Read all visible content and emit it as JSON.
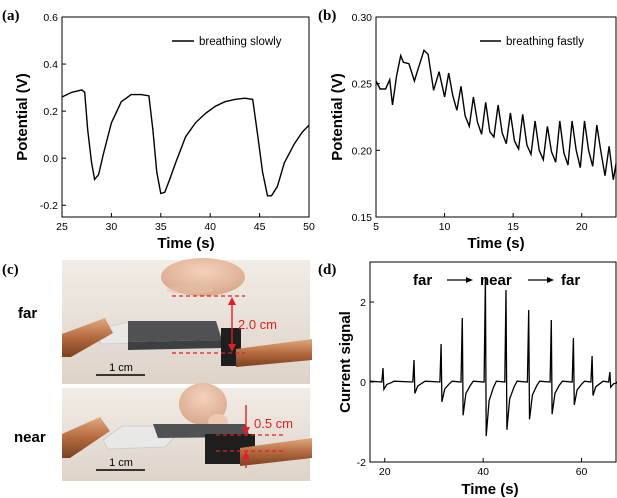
{
  "chart_data": [
    {
      "panel": "(a)",
      "type": "line",
      "xlabel": "Time (s)",
      "ylabel": "Potential (V)",
      "xlim": [
        25,
        50
      ],
      "ylim": [
        -0.25,
        0.6
      ],
      "xticks": [
        25,
        30,
        35,
        40,
        45,
        50
      ],
      "yticks": [
        -0.2,
        0.0,
        0.2,
        0.4,
        0.6
      ],
      "ytick_labels": [
        "-0.2",
        "0.0",
        "0.2",
        "0.4",
        "0.6"
      ],
      "legend_position": "top-right",
      "series": [
        {
          "name": "breathing slowly",
          "color": "#000000",
          "x": [
            25,
            26,
            27,
            27.3,
            27.6,
            28.0,
            28.3,
            28.7,
            29.2,
            30,
            31,
            32,
            33,
            33.8,
            34.2,
            34.6,
            35.0,
            35.4,
            35.9,
            36.5,
            37.5,
            38.5,
            39.5,
            40.5,
            41.5,
            42.5,
            43.5,
            44.3,
            44.8,
            45.3,
            45.8,
            46.2,
            46.8,
            47.5,
            48.5,
            49.3,
            50
          ],
          "y": [
            0.26,
            0.28,
            0.29,
            0.28,
            0.12,
            -0.02,
            -0.09,
            -0.07,
            0.02,
            0.15,
            0.24,
            0.27,
            0.27,
            0.265,
            0.12,
            -0.06,
            -0.15,
            -0.145,
            -0.09,
            -0.02,
            0.09,
            0.15,
            0.19,
            0.22,
            0.24,
            0.25,
            0.255,
            0.25,
            0.1,
            -0.06,
            -0.16,
            -0.16,
            -0.12,
            -0.02,
            0.06,
            0.11,
            0.14
          ]
        }
      ]
    },
    {
      "panel": "(b)",
      "type": "line",
      "xlabel": "Time (s)",
      "ylabel": "Potential (V)",
      "xlim": [
        5,
        22.5
      ],
      "ylim": [
        0.15,
        0.3
      ],
      "xticks": [
        5,
        10,
        15,
        20
      ],
      "yticks": [
        0.15,
        0.2,
        0.25,
        0.3
      ],
      "ytick_labels": [
        "0.15",
        "0.20",
        "0.25",
        "0.30"
      ],
      "legend_position": "top-right",
      "series": [
        {
          "name": "breathing fastly",
          "color": "#000000",
          "x": [
            5.0,
            5.3,
            5.7,
            6.0,
            6.2,
            6.5,
            6.8,
            7.0,
            7.4,
            7.8,
            8.1,
            8.5,
            8.8,
            9.2,
            9.6,
            10.0,
            10.3,
            10.6,
            10.9,
            11.2,
            11.5,
            11.8,
            12.1,
            12.4,
            12.7,
            13.0,
            13.3,
            13.6,
            13.9,
            14.2,
            14.5,
            14.8,
            15.1,
            15.4,
            15.7,
            16.0,
            16.3,
            16.6,
            16.9,
            17.2,
            17.5,
            17.8,
            18.1,
            18.4,
            18.7,
            19.0,
            19.3,
            19.6,
            19.9,
            20.2,
            20.5,
            20.8,
            21.1,
            21.4,
            21.7,
            22.0,
            22.3,
            22.5
          ],
          "y": [
            0.252,
            0.246,
            0.246,
            0.253,
            0.234,
            0.256,
            0.271,
            0.266,
            0.265,
            0.252,
            0.262,
            0.275,
            0.272,
            0.245,
            0.259,
            0.24,
            0.258,
            0.241,
            0.23,
            0.248,
            0.226,
            0.218,
            0.24,
            0.221,
            0.212,
            0.236,
            0.214,
            0.21,
            0.234,
            0.213,
            0.205,
            0.228,
            0.207,
            0.201,
            0.227,
            0.204,
            0.197,
            0.222,
            0.2,
            0.193,
            0.218,
            0.199,
            0.191,
            0.222,
            0.198,
            0.189,
            0.222,
            0.2,
            0.187,
            0.222,
            0.2,
            0.188,
            0.219,
            0.199,
            0.181,
            0.203,
            0.178,
            0.19
          ]
        }
      ]
    },
    {
      "panel": "(d)",
      "type": "line",
      "xlabel": "Time (s)",
      "ylabel": "Current signal",
      "xlim": [
        17,
        67
      ],
      "ylim": [
        -2.0,
        3.0
      ],
      "xticks": [
        20,
        40,
        60
      ],
      "yticks": [
        -2,
        0,
        2
      ],
      "ytick_labels": [
        "-2",
        "0",
        "2"
      ],
      "annotation": {
        "far_left": "far",
        "near": "near",
        "far_right": "far"
      },
      "pulses": [
        {
          "t": 19.7,
          "a": 0.35
        },
        {
          "t": 26.0,
          "a": 0.55
        },
        {
          "t": 31.5,
          "a": 0.95
        },
        {
          "t": 35.8,
          "a": 1.6
        },
        {
          "t": 40.5,
          "a": 2.6
        },
        {
          "t": 44.7,
          "a": 2.3
        },
        {
          "t": 49.3,
          "a": 1.8
        },
        {
          "t": 53.9,
          "a": 1.55
        },
        {
          "t": 58.4,
          "a": 1.1
        },
        {
          "t": 62.2,
          "a": 0.65
        },
        {
          "t": 65.8,
          "a": 0.25
        }
      ]
    }
  ],
  "figure": {
    "panel_a": "(a)",
    "panel_b": "(b)",
    "panel_c": "(c)",
    "panel_d": "(d)"
  },
  "photos": {
    "far_label": "far",
    "near_label": "near",
    "far_distance": "2.0 cm",
    "near_distance": "0.5 cm",
    "scalebar_top": "1 cm",
    "scalebar_bottom": "1 cm",
    "annotation_color": "#e02020"
  }
}
